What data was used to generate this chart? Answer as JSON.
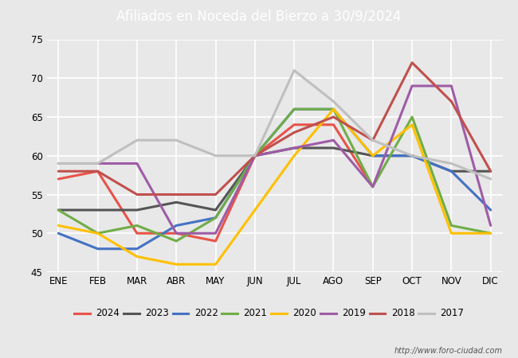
{
  "title": "Afiliados en Noceda del Bierzo a 30/9/2024",
  "ylim": [
    45,
    75
  ],
  "yticks": [
    45,
    50,
    55,
    60,
    65,
    70,
    75
  ],
  "months": [
    "ENE",
    "FEB",
    "MAR",
    "ABR",
    "MAY",
    "JUN",
    "JUL",
    "AGO",
    "SEP",
    "OCT",
    "NOV",
    "DIC"
  ],
  "series": {
    "2024": {
      "color": "#e8534a",
      "data": [
        57,
        58,
        50,
        50,
        49,
        60,
        64,
        64,
        56,
        null,
        null,
        null
      ]
    },
    "2023": {
      "color": "#555555",
      "data": [
        53,
        53,
        53,
        54,
        53,
        60,
        61,
        61,
        60,
        60,
        58,
        58
      ]
    },
    "2022": {
      "color": "#4472c4",
      "data": [
        50,
        48,
        48,
        51,
        52,
        60,
        66,
        66,
        60,
        60,
        58,
        53
      ]
    },
    "2021": {
      "color": "#70ad47",
      "data": [
        53,
        50,
        51,
        49,
        52,
        60,
        66,
        66,
        56,
        65,
        51,
        50
      ]
    },
    "2020": {
      "color": "#ffc000",
      "data": [
        51,
        50,
        47,
        46,
        46,
        53,
        60,
        66,
        60,
        64,
        50,
        50
      ]
    },
    "2019": {
      "color": "#9e5ca6",
      "data": [
        59,
        59,
        59,
        50,
        50,
        60,
        61,
        62,
        56,
        69,
        69,
        51
      ]
    },
    "2018": {
      "color": "#c0504d",
      "data": [
        58,
        58,
        55,
        55,
        55,
        60,
        63,
        65,
        62,
        72,
        67,
        58
      ]
    },
    "2017": {
      "color": "#bfbfbf",
      "data": [
        59,
        59,
        62,
        62,
        60,
        60,
        71,
        67,
        62,
        60,
        59,
        57
      ]
    }
  },
  "legend_order": [
    "2024",
    "2023",
    "2022",
    "2021",
    "2020",
    "2019",
    "2018",
    "2017"
  ],
  "footer_text": "http://www.foro-ciudad.com",
  "header_color": "#4d7ebf",
  "bg_color": "#e8e8e8",
  "plot_bg_color": "#e8e8e8",
  "grid_color": "#ffffff"
}
